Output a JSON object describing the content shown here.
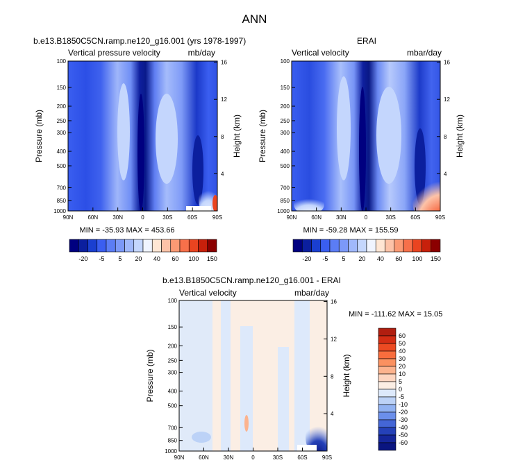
{
  "page": {
    "title": "ANN"
  },
  "chart_data": [
    {
      "type": "heatmap",
      "id": "model",
      "title": "b.e13.B1850C5CN.ramp.ne120_g16.001 (yrs 1978-1997)",
      "left_label": "Vertical pressure velocity",
      "right_label": "mb/day",
      "ylabel": "Pressure (mb)",
      "y2label": "Height (km)",
      "x_ticks": [
        "90N",
        "60N",
        "30N",
        "0",
        "30S",
        "60S",
        "90S"
      ],
      "y_ticks": [
        "100",
        "150",
        "200",
        "250",
        "300",
        "400",
        "500",
        "700",
        "850",
        "1000"
      ],
      "y2_ticks": [
        "16",
        "12",
        "8",
        "4"
      ],
      "stats": "MIN = -35.93   MAX = 453.66",
      "colorbar_labels": [
        "-20",
        "-5",
        "5",
        "20",
        "40",
        "60",
        "100",
        "150"
      ],
      "colors": [
        "#000080",
        "#0b1f9e",
        "#1a3fd0",
        "#3a5ef0",
        "#5b7df5",
        "#7c99f8",
        "#a0b8fb",
        "#c4d6fd",
        "#f0f4ff",
        "#ffe6d4",
        "#fdc3a8",
        "#fb9a74",
        "#f7704a",
        "#ea4420",
        "#c8200b",
        "#8b0000"
      ]
    },
    {
      "type": "heatmap",
      "id": "obs",
      "title": "ERAI",
      "left_label": "Vertical velocity",
      "right_label": "mbar/day",
      "ylabel": "Pressure (mb)",
      "y2label": "Height (km)",
      "x_ticks": [
        "90N",
        "60N",
        "30N",
        "0",
        "30S",
        "60S",
        "90S"
      ],
      "y_ticks": [
        "100",
        "150",
        "200",
        "250",
        "300",
        "400",
        "500",
        "700",
        "850",
        "1000"
      ],
      "y2_ticks": [
        "16",
        "12",
        "8",
        "4"
      ],
      "stats": "MIN = -59.28   MAX = 155.59",
      "colorbar_labels": [
        "-20",
        "-5",
        "5",
        "20",
        "40",
        "60",
        "100",
        "150"
      ]
    },
    {
      "type": "heatmap",
      "id": "diff",
      "title": "b.e13.B1850C5CN.ramp.ne120_g16.001 - ERAI",
      "left_label": "Vertical velocity",
      "right_label": "mbar/day",
      "ylabel": "Pressure (mb)",
      "y2label": "Height (km)",
      "x_ticks": [
        "90N",
        "60N",
        "30N",
        "0",
        "30S",
        "60S",
        "90S"
      ],
      "y_ticks": [
        "100",
        "150",
        "200",
        "250",
        "300",
        "400",
        "500",
        "700",
        "850",
        "1000"
      ],
      "y2_ticks": [
        "16",
        "12",
        "8",
        "4"
      ],
      "stats": "MIN = -111.62   MAX =  15.05",
      "colorbar_labels": [
        "60",
        "50",
        "40",
        "30",
        "20",
        "10",
        "5",
        "0",
        "-5",
        "-10",
        "-20",
        "-30",
        "-40",
        "-50",
        "-60"
      ],
      "colors": [
        "#b11e10",
        "#d42d14",
        "#ec4a22",
        "#f86d3d",
        "#fb9160",
        "#fcb38e",
        "#fdd5c0",
        "#fbeee4",
        "#dde9fb",
        "#bcd2f7",
        "#91b2f2",
        "#6b8fea",
        "#4466d6",
        "#2541b8",
        "#15269a",
        "#0a1580"
      ]
    }
  ]
}
